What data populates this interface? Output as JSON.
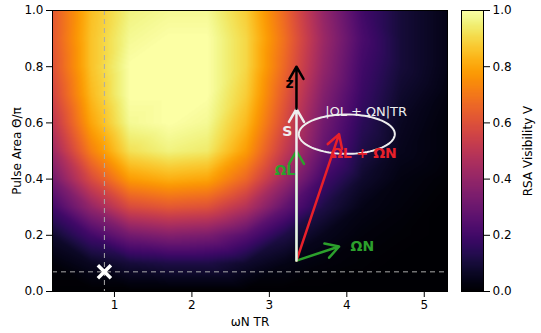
{
  "chart_data": {
    "type": "heatmap",
    "xlabel": "ωN TR",
    "ylabel": "Pulse Area Θ/π",
    "xlim": [
      0.2,
      5.3
    ],
    "ylim": [
      0,
      1
    ],
    "xticks": [
      1,
      2,
      3,
      4,
      5
    ],
    "yticks": [
      {
        "value": 0,
        "label": "0.0"
      },
      {
        "value": 0.2,
        "label": "0.2"
      },
      {
        "value": 0.4,
        "label": "0.4"
      },
      {
        "value": 0.6,
        "label": "0.6"
      },
      {
        "value": 0.8,
        "label": "0.8"
      },
      {
        "value": 1,
        "label": "1.0"
      }
    ],
    "cells": {
      "x": [
        0.2,
        0.7,
        1.2,
        1.7,
        2.2,
        2.7,
        3.2,
        3.7,
        4.2,
        4.7,
        5.3
      ],
      "y": [
        0,
        0.1,
        0.2,
        0.3,
        0.4,
        0.5,
        0.6,
        0.7,
        0.8,
        0.9,
        1
      ],
      "values": [
        [
          0,
          0,
          0,
          0,
          0,
          0,
          0,
          0,
          0,
          0,
          0
        ],
        [
          0.02,
          0.06,
          0.1,
          0.12,
          0.12,
          0.08,
          0.04,
          0.02,
          0.01,
          0,
          0
        ],
        [
          0.08,
          0.2,
          0.32,
          0.36,
          0.34,
          0.25,
          0.12,
          0.05,
          0.02,
          0.01,
          0
        ],
        [
          0.2,
          0.4,
          0.58,
          0.62,
          0.6,
          0.48,
          0.28,
          0.12,
          0.04,
          0.02,
          0
        ],
        [
          0.32,
          0.58,
          0.78,
          0.82,
          0.8,
          0.66,
          0.42,
          0.2,
          0.08,
          0.03,
          0.01
        ],
        [
          0.42,
          0.72,
          0.92,
          0.96,
          0.94,
          0.78,
          0.52,
          0.28,
          0.12,
          0.05,
          0.02
        ],
        [
          0.5,
          0.8,
          0.98,
          1,
          0.98,
          0.84,
          0.58,
          0.32,
          0.15,
          0.06,
          0.02
        ],
        [
          0.56,
          0.84,
          1,
          1,
          1,
          0.88,
          0.62,
          0.36,
          0.18,
          0.08,
          0.03
        ],
        [
          0.6,
          0.86,
          1,
          1,
          1,
          0.9,
          0.66,
          0.4,
          0.2,
          0.1,
          0.04
        ],
        [
          0.62,
          0.86,
          0.98,
          1,
          1,
          0.9,
          0.68,
          0.42,
          0.22,
          0.1,
          0.04
        ],
        [
          0.62,
          0.85,
          0.96,
          0.98,
          0.98,
          0.88,
          0.66,
          0.4,
          0.2,
          0.1,
          0.04
        ]
      ]
    },
    "colorbar": {
      "label": "RSA Visibility V",
      "color": "inferno",
      "lim": [
        0,
        1
      ],
      "ticks": [
        {
          "value": 0,
          "label": "0.0"
        },
        {
          "value": 0.2,
          "label": "0.2"
        },
        {
          "value": 0.4,
          "label": "0.4"
        },
        {
          "value": 0.6,
          "label": "0.6"
        },
        {
          "value": 0.8,
          "label": "0.8"
        },
        {
          "value": 1,
          "label": "1.0"
        }
      ]
    },
    "marker_point": {
      "x": 0.87,
      "y": 0.07
    },
    "vectors": [
      {
        "label": "ΩN",
        "color": "#2ca02c",
        "x1": 3.35,
        "y1": 0.11,
        "x2": 3.9,
        "y2": 0.16,
        "label_x": 4.2,
        "label_y": 0.16
      },
      {
        "label": "ΩL + ΩN",
        "color": "#e8202a",
        "x1": 3.35,
        "y1": 0.11,
        "x2": 3.9,
        "y2": 0.56,
        "label_x": 4.22,
        "label_y": 0.49
      },
      {
        "label": "ΩL",
        "color": "#2ca02c",
        "x1": 3.35,
        "y1": 0.11,
        "x2": 3.35,
        "y2": 0.5,
        "label_x": 3.2,
        "label_y": 0.43
      },
      {
        "label": "S",
        "color": "#eeeeee",
        "x1": 3.35,
        "y1": 0.11,
        "x2": 3.35,
        "y2": 0.65,
        "label_x": 3.23,
        "label_y": 0.57
      },
      {
        "label": "z",
        "color": "#000000",
        "x1": 3.35,
        "y1": 0.65,
        "x2": 3.35,
        "y2": 0.8,
        "label_x": 3.26,
        "label_y": 0.74
      }
    ],
    "ellipse": {
      "cx": 4.0,
      "cy": 0.56,
      "rx": 0.62,
      "ry": 0.07,
      "color": "#eeeeee"
    },
    "annotations": [
      {
        "text": "|ΩL + ΩN|TR",
        "x": 4.25,
        "y": 0.64,
        "color": "#eeeeee"
      }
    ]
  }
}
